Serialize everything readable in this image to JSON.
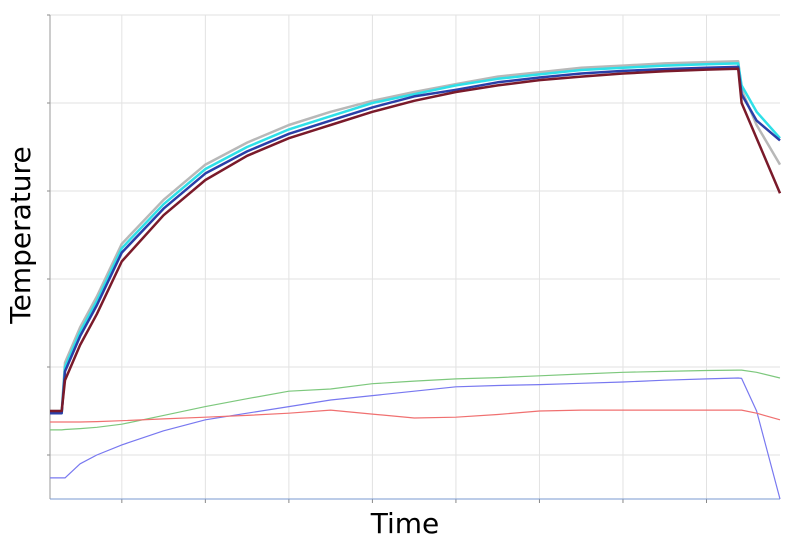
{
  "chart_data": {
    "type": "line",
    "xlabel": "Time",
    "ylabel": "Temperature",
    "x": [
      0.7,
      1.4,
      1.6,
      2.5,
      3.5,
      5,
      7.5,
      10,
      12.5,
      15,
      17.5,
      20,
      22.5,
      25,
      27.5,
      30,
      32.5,
      35,
      37.5,
      40,
      41.9,
      42.1,
      43,
      44.4
    ],
    "series": [
      {
        "color": "#b8b8b8",
        "values": [
          20,
          20,
          31,
          39,
          46,
          58,
          68,
          76,
          81,
          85,
          88,
          90.5,
          92.5,
          94.3,
          96,
          97,
          98,
          98.5,
          99,
          99.3,
          99.5,
          93,
          85,
          76
        ]
      },
      {
        "color": "#2ee0e8",
        "values": [
          19.5,
          19.5,
          30,
          38,
          45,
          57,
          67,
          75,
          80,
          84,
          87,
          90,
          92,
          94,
          95.5,
          96.5,
          97.5,
          98,
          98.5,
          98.8,
          99,
          94,
          88,
          82
        ]
      },
      {
        "color": "#2a3fa8",
        "values": [
          19.5,
          19.5,
          29,
          37,
          44,
          56,
          66,
          74,
          79,
          83,
          86,
          89,
          91.5,
          93,
          94.7,
          95.8,
          96.7,
          97.3,
          97.7,
          98,
          98.2,
          92,
          86,
          81.5
        ]
      },
      {
        "color": "#7a1a2a",
        "values": [
          20,
          20,
          27,
          35,
          42,
          54,
          64.5,
          72.5,
          78,
          82,
          85,
          88,
          90.5,
          92.5,
          94,
          95.2,
          96,
          96.7,
          97.2,
          97.6,
          97.8,
          90,
          82,
          69.5
        ]
      },
      {
        "color": "#7dc87d",
        "values": [
          15.7,
          15.7,
          15.8,
          16,
          16.3,
          17,
          19,
          21,
          22.8,
          24.5,
          25,
          26.2,
          26.8,
          27.3,
          27.6,
          28,
          28.4,
          28.8,
          29,
          29.2,
          29.3,
          29.3,
          28.8,
          27.5
        ]
      },
      {
        "color": "#7878f0",
        "values": [
          4.8,
          4.8,
          4.8,
          8,
          10,
          12.3,
          15.5,
          18,
          19.5,
          21,
          22.5,
          23.5,
          24.5,
          25.5,
          25.8,
          26,
          26.3,
          26.6,
          27,
          27.3,
          27.5,
          27.4,
          20,
          0
        ]
      },
      {
        "color": "#f07070",
        "values": [
          17.5,
          17.5,
          17.5,
          17.5,
          17.6,
          17.8,
          18.2,
          18.6,
          19,
          19.5,
          20.2,
          19.3,
          18.4,
          18.6,
          19.2,
          20,
          20.2,
          20.2,
          20.2,
          20.2,
          20.2,
          20.2,
          19.5,
          18
        ]
      }
    ],
    "xlim": [
      0.7,
      44.4
    ],
    "xticks": [
      5,
      10,
      15,
      20,
      25,
      30,
      35,
      40
    ],
    "ylim": [
      0,
      110
    ],
    "yticks": [
      10,
      30,
      50,
      70,
      90,
      110
    ],
    "grid": true
  }
}
